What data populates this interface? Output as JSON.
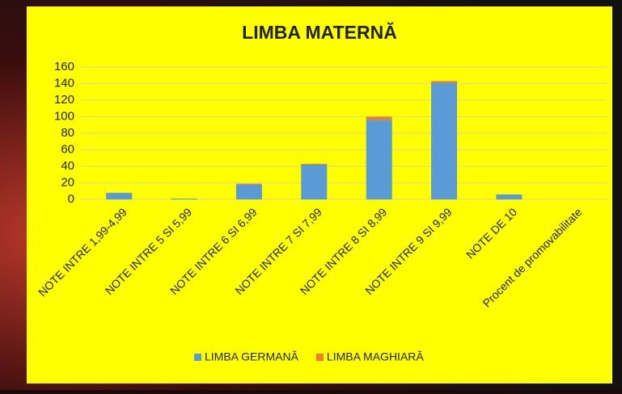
{
  "chart_data": {
    "type": "bar",
    "stacked": true,
    "title": "LIMBA MATERNĂ",
    "categories": [
      "NOTE INTRE 1,99-4,99",
      "NOTE INTRE 5 SI 5,99",
      "NOTE INTRE 6 SI 6,99",
      "NOTE INTRE 7 SI 7,99",
      "NOTE INTRE 8 SI 8,99",
      "NOTE INTRE 9 SI 9,99",
      "NOTE DE 10",
      "Procent de promovabilitate"
    ],
    "series": [
      {
        "name": "LIMBA GERMANĂ",
        "color": "#5b9bd5",
        "values": [
          8,
          1,
          18,
          42,
          96,
          141,
          6,
          0
        ]
      },
      {
        "name": "LIMBA MAGHIARĂ",
        "color": "#ed7d31",
        "values": [
          0,
          0,
          1,
          1,
          4,
          2,
          0,
          0
        ]
      }
    ],
    "ylim": [
      0,
      160
    ],
    "yticks": [
      0,
      20,
      40,
      60,
      80,
      100,
      120,
      140,
      160
    ],
    "grid": true,
    "legend": "bottom"
  }
}
